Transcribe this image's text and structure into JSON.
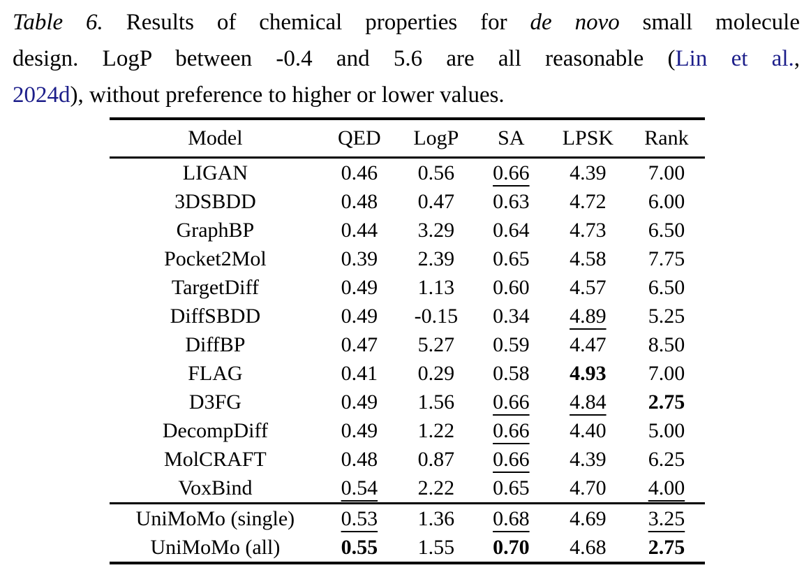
{
  "page": {
    "background": "#ffffff",
    "text_color": "#000000",
    "link_color": "#1c1e8a"
  },
  "caption": {
    "lines": [
      {
        "segments": [
          {
            "text": "Table 6.",
            "style": "italic"
          },
          {
            "text": " Results of chemical properties for ",
            "style": "normal"
          },
          {
            "text": "de novo",
            "style": "italic"
          },
          {
            "text": " small molecule",
            "style": "normal"
          }
        ]
      },
      {
        "segments": [
          {
            "text": "design. LogP between -0.4 and 5.6 are all reasonable (",
            "style": "normal"
          },
          {
            "text": "Lin et al.",
            "style": "link"
          },
          {
            "text": ",",
            "style": "normal"
          }
        ]
      },
      {
        "segments": [
          {
            "text": "2024d",
            "style": "link"
          },
          {
            "text": "), without preference to higher or lower values.",
            "style": "normal"
          }
        ]
      }
    ]
  },
  "table": {
    "columns": [
      {
        "label": "Model"
      },
      {
        "label": "QED"
      },
      {
        "label": "LogP"
      },
      {
        "label": "SA"
      },
      {
        "label": "LPSK"
      },
      {
        "label": "Rank"
      }
    ],
    "rows": [
      {
        "model": "LIGAN",
        "section": "baselines",
        "values": [
          {
            "text": "0.46"
          },
          {
            "text": "0.56"
          },
          {
            "text": "0.66",
            "underline": true
          },
          {
            "text": "4.39"
          },
          {
            "text": "7.00"
          }
        ]
      },
      {
        "model": "3DSBDD",
        "section": "baselines",
        "values": [
          {
            "text": "0.48"
          },
          {
            "text": "0.47"
          },
          {
            "text": "0.63"
          },
          {
            "text": "4.72"
          },
          {
            "text": "6.00"
          }
        ]
      },
      {
        "model": "GraphBP",
        "section": "baselines",
        "values": [
          {
            "text": "0.44"
          },
          {
            "text": "3.29"
          },
          {
            "text": "0.64"
          },
          {
            "text": "4.73"
          },
          {
            "text": "6.50"
          }
        ]
      },
      {
        "model": "Pocket2Mol",
        "section": "baselines",
        "values": [
          {
            "text": "0.39"
          },
          {
            "text": "2.39"
          },
          {
            "text": "0.65"
          },
          {
            "text": "4.58"
          },
          {
            "text": "7.75"
          }
        ]
      },
      {
        "model": "TargetDiff",
        "section": "baselines",
        "values": [
          {
            "text": "0.49"
          },
          {
            "text": "1.13"
          },
          {
            "text": "0.60"
          },
          {
            "text": "4.57"
          },
          {
            "text": "6.50"
          }
        ]
      },
      {
        "model": "DiffSBDD",
        "section": "baselines",
        "values": [
          {
            "text": "0.49"
          },
          {
            "text": "-0.15"
          },
          {
            "text": "0.34"
          },
          {
            "text": "4.89",
            "underline": true
          },
          {
            "text": "5.25"
          }
        ]
      },
      {
        "model": "DiffBP",
        "section": "baselines",
        "values": [
          {
            "text": "0.47"
          },
          {
            "text": "5.27"
          },
          {
            "text": "0.59"
          },
          {
            "text": "4.47"
          },
          {
            "text": "8.50"
          }
        ]
      },
      {
        "model": "FLAG",
        "section": "baselines",
        "values": [
          {
            "text": "0.41"
          },
          {
            "text": "0.29"
          },
          {
            "text": "0.58"
          },
          {
            "text": "4.93",
            "bold": true
          },
          {
            "text": "7.00"
          }
        ]
      },
      {
        "model": "D3FG",
        "section": "baselines",
        "values": [
          {
            "text": "0.49"
          },
          {
            "text": "1.56"
          },
          {
            "text": "0.66",
            "underline": true
          },
          {
            "text": "4.84",
            "underline": true
          },
          {
            "text": "2.75",
            "bold": true
          }
        ]
      },
      {
        "model": "DecompDiff",
        "section": "baselines",
        "values": [
          {
            "text": "0.49"
          },
          {
            "text": "1.22"
          },
          {
            "text": "0.66",
            "underline": true
          },
          {
            "text": "4.40"
          },
          {
            "text": "5.00"
          }
        ]
      },
      {
        "model": "MolCRAFT",
        "section": "baselines",
        "values": [
          {
            "text": "0.48"
          },
          {
            "text": "0.87"
          },
          {
            "text": "0.66",
            "underline": true
          },
          {
            "text": "4.39"
          },
          {
            "text": "6.25"
          }
        ]
      },
      {
        "model": "VoxBind",
        "section": "baselines",
        "values": [
          {
            "text": "0.54",
            "underline": true
          },
          {
            "text": "2.22"
          },
          {
            "text": "0.65"
          },
          {
            "text": "4.70"
          },
          {
            "text": "4.00",
            "underline": true
          }
        ]
      },
      {
        "model": "UniMoMo (single)",
        "section": "ours",
        "values": [
          {
            "text": "0.53",
            "underline": true
          },
          {
            "text": "1.36"
          },
          {
            "text": "0.68",
            "underline": true
          },
          {
            "text": "4.69"
          },
          {
            "text": "3.25",
            "underline": true
          }
        ]
      },
      {
        "model": "UniMoMo (all)",
        "section": "ours",
        "values": [
          {
            "text": "0.55",
            "bold": true
          },
          {
            "text": "1.55"
          },
          {
            "text": "0.70",
            "bold": true
          },
          {
            "text": "4.68"
          },
          {
            "text": "2.75",
            "bold": true
          }
        ]
      }
    ]
  }
}
